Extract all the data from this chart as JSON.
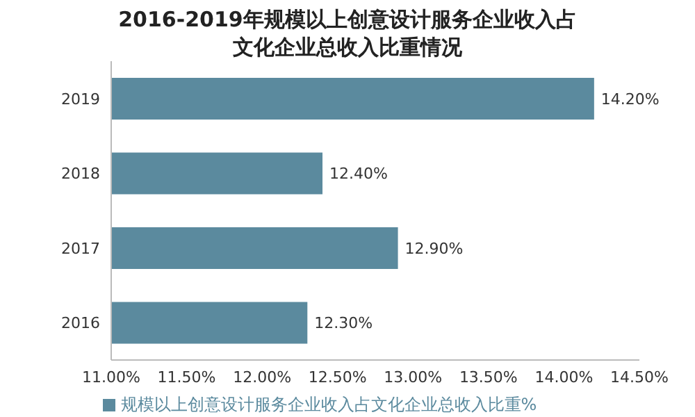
{
  "chart_data": {
    "type": "bar",
    "orientation": "horizontal",
    "title": "2016-2019年规模以上创意设计服务企业收入占文化企业总收入比重情况",
    "categories": [
      "2019",
      "2018",
      "2017",
      "2016"
    ],
    "series": [
      {
        "name": "规模以上创意设计服务企业收入占文化企业总收入比重%",
        "color": "#5b8a9e",
        "values": [
          14.2,
          12.4,
          12.9,
          12.3
        ],
        "value_labels": [
          "14.20%",
          "12.40%",
          "12.90%",
          "12.30%"
        ]
      }
    ],
    "xlim": [
      11,
      14.5
    ],
    "xticks": [
      {
        "value": 11,
        "label": "11.00%"
      },
      {
        "value": 11.5,
        "label": "11.50%"
      },
      {
        "value": 12,
        "label": "12.00%"
      },
      {
        "value": 12.5,
        "label": "12.50%"
      },
      {
        "value": 13,
        "label": "13.00%"
      },
      {
        "value": 13.5,
        "label": "13.50%"
      },
      {
        "value": 14,
        "label": "14.00%"
      },
      {
        "value": 14.5,
        "label": "14.50%"
      }
    ],
    "legend": "bottom"
  }
}
